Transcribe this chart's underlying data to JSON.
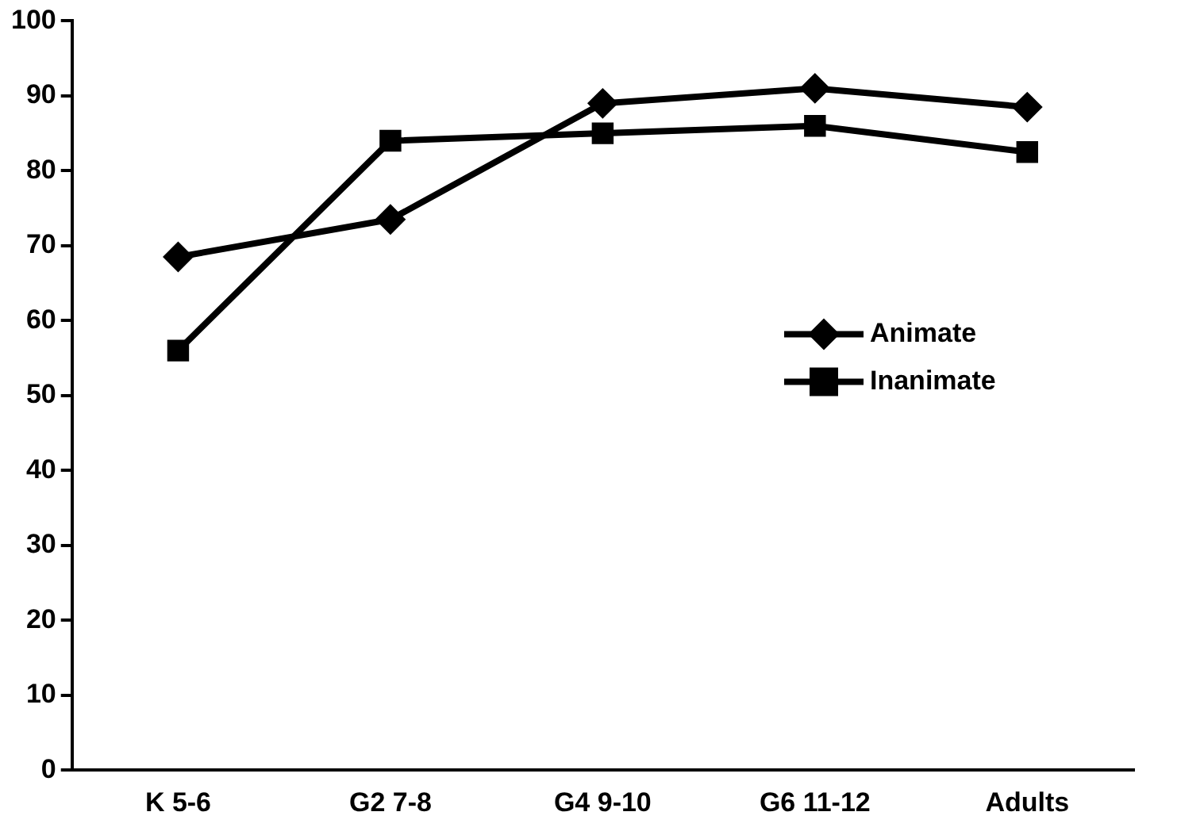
{
  "chart_data": {
    "type": "line",
    "categories": [
      "K 5-6",
      "G2 7-8",
      "G4 9-10",
      "G6 11-12",
      "Adults"
    ],
    "series": [
      {
        "name": "Animate",
        "color": "#000000",
        "marker": "diamond",
        "values": [
          68.5,
          73.5,
          89,
          91,
          88.5
        ]
      },
      {
        "name": "Inanimate",
        "color": "#000000",
        "marker": "square",
        "values": [
          56,
          84,
          85,
          86,
          82.5
        ]
      }
    ],
    "ylim": [
      0,
      100
    ],
    "yticks": [
      0,
      10,
      20,
      30,
      40,
      50,
      60,
      70,
      80,
      90,
      100
    ],
    "grid": false,
    "legend": "right",
    "line_style": "solid"
  }
}
